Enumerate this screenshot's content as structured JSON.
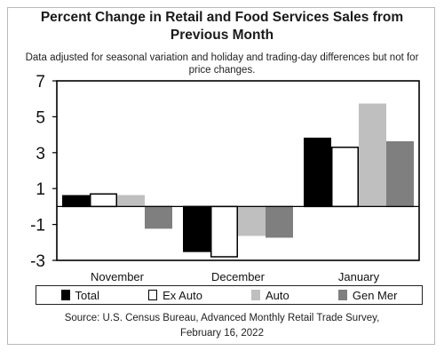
{
  "chart_data": {
    "type": "bar",
    "title": "Percent Change in Retail and Food Services Sales from\nPrevious Month",
    "subtitle": "Data adjusted for seasonal variation and holiday and trading-day differences but not for\nprice changes.",
    "categories": [
      "November",
      "December",
      "January"
    ],
    "series": [
      {
        "name": "Total",
        "values": [
          0.6,
          -2.5,
          3.8
        ],
        "fill": "#000000",
        "stroke": "#000000"
      },
      {
        "name": "Ex Auto",
        "values": [
          0.7,
          -2.8,
          3.3
        ],
        "fill": "#ffffff",
        "stroke": "#000000"
      },
      {
        "name": "Auto",
        "values": [
          0.6,
          -1.6,
          5.7
        ],
        "fill": "#bfbfbf",
        "stroke": "#bfbfbf"
      },
      {
        "name": "Gen Mer",
        "values": [
          -1.2,
          -1.7,
          3.6
        ],
        "fill": "#7f7f7f",
        "stroke": "#7f7f7f"
      }
    ],
    "ylim": [
      -3,
      7
    ],
    "yticks": [
      -3,
      -1,
      1,
      3,
      5,
      7
    ],
    "xlabel": "",
    "ylabel": "",
    "grid": false,
    "legend": "bottom",
    "source": "Source: U.S. Census Bureau, Advanced Monthly Retail Trade Survey,\nFebruary 16, 2022"
  }
}
